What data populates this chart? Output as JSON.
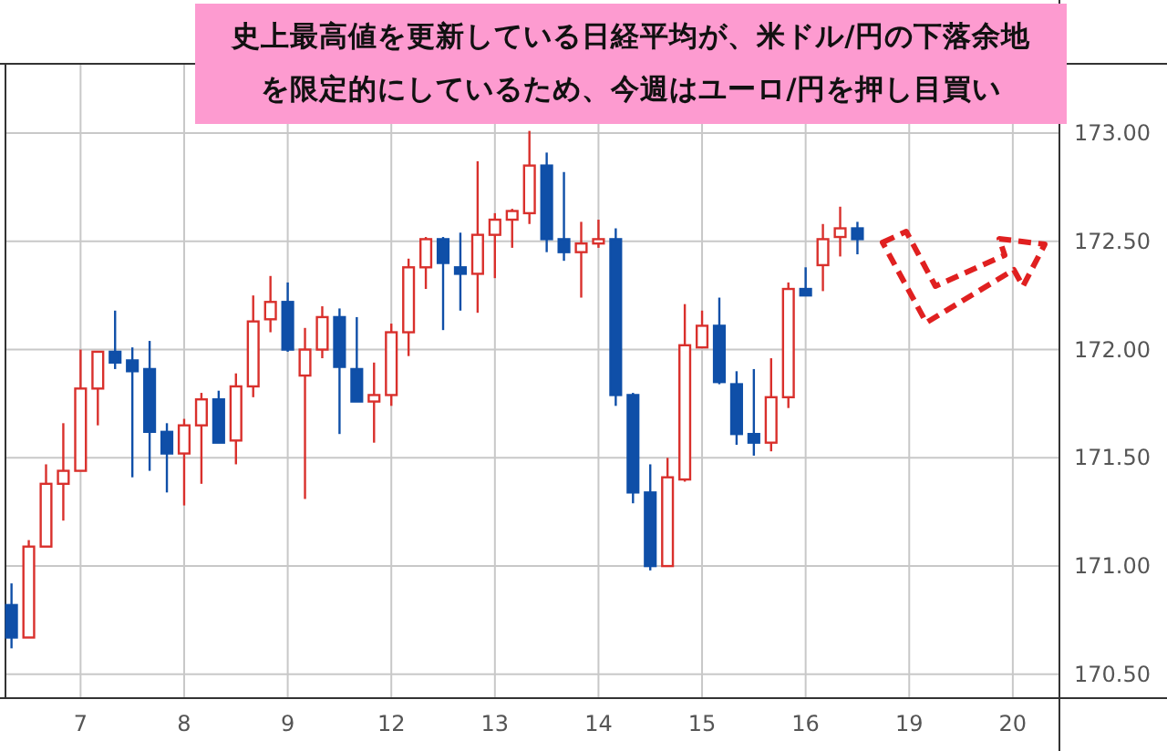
{
  "chart_data": {
    "type": "candlestick",
    "title": "史上最高値を更新している日経平均が、米ドル/円の下落余地を限定的にしているため、今週はユーロ/円を押し目買い",
    "categories": [
      null,
      null,
      null,
      null,
      "7",
      null,
      null,
      null,
      null,
      null,
      "8",
      null,
      null,
      null,
      null,
      null,
      "9",
      null,
      null,
      null,
      null,
      null,
      "12",
      null,
      null,
      null,
      null,
      null,
      "13",
      null,
      null,
      null,
      null,
      null,
      "14",
      null,
      null,
      null,
      null,
      null,
      "15",
      null,
      null,
      null,
      null,
      null,
      "16",
      null,
      null,
      null,
      null,
      null,
      "19",
      null,
      null,
      null,
      null,
      null,
      "20",
      null,
      null
    ],
    "ohlc": [
      [
        170.82,
        170.92,
        170.62,
        170.67
      ],
      [
        170.67,
        171.12,
        170.67,
        171.09
      ],
      [
        171.09,
        171.47,
        171.09,
        171.38
      ],
      [
        171.38,
        171.66,
        171.21,
        171.44
      ],
      [
        171.44,
        172.0,
        171.44,
        171.82
      ],
      [
        171.82,
        171.99,
        171.65,
        171.99
      ],
      [
        171.99,
        172.18,
        171.91,
        171.94
      ],
      [
        171.95,
        172.01,
        171.41,
        171.9
      ],
      [
        171.91,
        172.04,
        171.44,
        171.62
      ],
      [
        171.62,
        171.66,
        171.34,
        171.52
      ],
      [
        171.52,
        171.68,
        171.28,
        171.65
      ],
      [
        171.65,
        171.8,
        171.38,
        171.77
      ],
      [
        171.77,
        171.81,
        171.57,
        171.57
      ],
      [
        171.58,
        171.89,
        171.47,
        171.83
      ],
      [
        171.83,
        172.25,
        171.78,
        172.13
      ],
      [
        172.14,
        172.34,
        172.08,
        172.22
      ],
      [
        172.22,
        172.31,
        171.99,
        172.0
      ],
      [
        171.88,
        172.1,
        171.31,
        172.0
      ],
      [
        172.0,
        172.2,
        171.96,
        172.15
      ],
      [
        172.15,
        172.19,
        171.61,
        171.92
      ],
      [
        171.91,
        172.15,
        171.76,
        171.76
      ],
      [
        171.76,
        171.94,
        171.57,
        171.79
      ],
      [
        171.79,
        172.12,
        171.74,
        172.08
      ],
      [
        172.08,
        172.42,
        171.97,
        172.38
      ],
      [
        172.38,
        172.52,
        172.28,
        172.51
      ],
      [
        172.51,
        172.52,
        172.09,
        172.4
      ],
      [
        172.38,
        172.54,
        172.18,
        172.35
      ],
      [
        172.35,
        172.87,
        172.17,
        172.53
      ],
      [
        172.53,
        172.63,
        172.33,
        172.6
      ],
      [
        172.6,
        172.65,
        172.47,
        172.64
      ],
      [
        172.63,
        173.01,
        172.58,
        172.85
      ],
      [
        172.85,
        172.91,
        172.45,
        172.51
      ],
      [
        172.51,
        172.82,
        172.41,
        172.45
      ],
      [
        172.45,
        172.59,
        172.24,
        172.49
      ],
      [
        172.49,
        172.6,
        172.47,
        172.51
      ],
      [
        172.51,
        172.56,
        171.74,
        171.79
      ],
      [
        171.79,
        171.8,
        171.29,
        171.34
      ],
      [
        171.34,
        171.47,
        170.98,
        171.0
      ],
      [
        171.0,
        171.5,
        171.0,
        171.41
      ],
      [
        171.4,
        172.21,
        171.39,
        172.02
      ],
      [
        172.01,
        172.18,
        172.01,
        172.11
      ],
      [
        172.11,
        172.24,
        171.84,
        171.85
      ],
      [
        171.84,
        171.9,
        171.56,
        171.61
      ],
      [
        171.61,
        171.91,
        171.51,
        171.57
      ],
      [
        171.57,
        171.96,
        171.53,
        171.78
      ],
      [
        171.78,
        172.31,
        171.73,
        172.28
      ],
      [
        172.28,
        172.38,
        172.25,
        172.25
      ],
      [
        172.39,
        172.58,
        172.27,
        172.51
      ],
      [
        172.52,
        172.66,
        172.43,
        172.56
      ],
      [
        172.56,
        172.59,
        172.44,
        172.51
      ],
      null,
      null,
      null,
      null,
      null,
      null,
      null,
      null,
      null,
      null,
      null
    ],
    "colors": [
      "#0f4fa8",
      "#d9302c",
      "#d9302c",
      "#d9302c",
      "#d9302c",
      "#d9302c",
      "#0f4fa8",
      "#0f4fa8",
      "#0f4fa8",
      "#0f4fa8",
      "#d9302c",
      "#d9302c",
      "#0f4fa8",
      "#d9302c",
      "#d9302c",
      "#d9302c",
      "#0f4fa8",
      "#d9302c",
      "#d9302c",
      "#0f4fa8",
      "#0f4fa8",
      "#d9302c",
      "#d9302c",
      "#d9302c",
      "#d9302c",
      "#0f4fa8",
      "#0f4fa8",
      "#d9302c",
      "#d9302c",
      "#d9302c",
      "#d9302c",
      "#0f4fa8",
      "#0f4fa8",
      "#d9302c",
      "#d9302c",
      "#0f4fa8",
      "#0f4fa8",
      "#0f4fa8",
      "#d9302c",
      "#d9302c",
      "#d9302c",
      "#0f4fa8",
      "#0f4fa8",
      "#0f4fa8",
      "#d9302c",
      "#d9302c",
      "#0f4fa8",
      "#d9302c",
      "#d9302c",
      "#0f4fa8",
      null,
      null,
      null,
      null,
      null,
      null,
      null,
      null,
      null,
      null,
      null
    ],
    "ylim": [
      170.39,
      173.32
    ],
    "yticks": [
      {
        "value": 170.5,
        "label": "170.50"
      },
      {
        "value": 171,
        "label": "171.00"
      },
      {
        "value": 171.5,
        "label": "171.50"
      },
      {
        "value": 172,
        "label": "172.00"
      },
      {
        "value": 172.5,
        "label": "172.50"
      },
      {
        "value": 173,
        "label": "173.00"
      }
    ],
    "grid": true
  }
}
